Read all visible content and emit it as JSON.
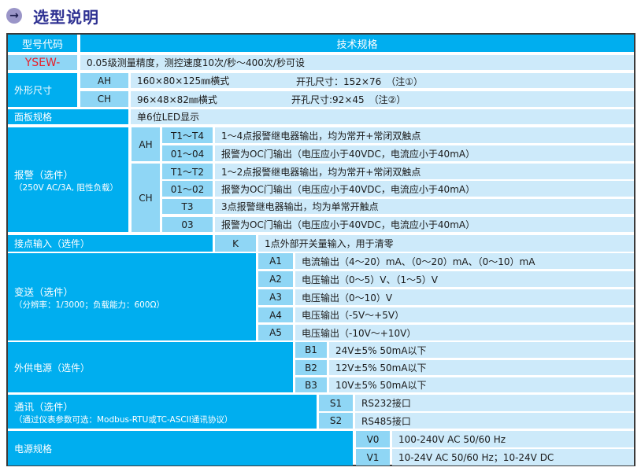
{
  "title": {
    "icon": "circle-arrow-right-icon",
    "text": "选型说明"
  },
  "colors": {
    "label_bg": "#00aeef",
    "code_bg": "#8fd6f5",
    "text_bg": "#cdeafa",
    "title": "#2e3192",
    "model": "#e8202a"
  },
  "header": {
    "code_col": "型号代码",
    "spec_col": "技术规格"
  },
  "model": {
    "code": "YSEW-",
    "desc": "0.05级测量精度，测控速度10次/秒～400次/秒可设"
  },
  "size": {
    "label": "外形尺寸",
    "rows": [
      {
        "code": "AH",
        "dim": "160×80×125㎜横式",
        "cut": "开孔尺寸：152×76　（注①）"
      },
      {
        "code": "CH",
        "dim": "96×48×82㎜横式",
        "cut": "开孔尺寸:92×45　（注②）"
      }
    ]
  },
  "panel": {
    "label": "面板规格",
    "desc": "单6位LED显示"
  },
  "alarm": {
    "label": "报警（选件）",
    "sub": "（250V AC/3A, 阻性负载）",
    "groups": [
      {
        "code": "AH",
        "rows": [
          {
            "code": "T1～T4",
            "desc": "1～4点报警继电器输出，均为常开+常闭双触点"
          },
          {
            "code": "01～04",
            "desc": "报警为OC门输出（电压应小于40VDC，电流应小于40mA）"
          }
        ]
      },
      {
        "code": "CH",
        "rows": [
          {
            "code": "T1～T2",
            "desc": "1～2点报警继电器输出，均为常开+常闭双触点"
          },
          {
            "code": "01～02",
            "desc": "报警为OC门输出（电压应小于40VDC，电流应小于40mA）"
          },
          {
            "code": "T3",
            "desc": "3点报警继电器输出，均为单常开触点"
          },
          {
            "code": "03",
            "desc": "报警为OC门输出（电压应小于40VDC，电流应小于40mA）"
          }
        ]
      }
    ]
  },
  "contact": {
    "label": "接点输入（选件）",
    "code": "K",
    "desc": "1点外部开关量输入，用于清零"
  },
  "transmit": {
    "label": "变送（选件）",
    "sub": "（分辨率：1/3000；负载能力：600Ω）",
    "rows": [
      {
        "code": "A1",
        "desc": "电流输出（4～20）mA、（0～20）mA、（0～10）mA"
      },
      {
        "code": "A2",
        "desc": "电压输出（0～5）V、（1～5）V"
      },
      {
        "code": "A3",
        "desc": "电压输出（0～10）V"
      },
      {
        "code": "A4",
        "desc": "电压输出（-5V～+5V）"
      },
      {
        "code": "A5",
        "desc": "电压输出（-10V～+10V）"
      }
    ]
  },
  "supply": {
    "label": "外供电源（选件）",
    "rows": [
      {
        "code": "B1",
        "desc": "24V±5% 50mA以下"
      },
      {
        "code": "B2",
        "desc": "12V±5% 50mA以下"
      },
      {
        "code": "B3",
        "desc": "10V±5% 50mA以下"
      }
    ]
  },
  "comm": {
    "label": "通讯（选件）",
    "sub": "（通过仪表参数可选：Modbus-RTU或TC-ASCII通讯协议）",
    "rows": [
      {
        "code": "S1",
        "desc": "RS232接口"
      },
      {
        "code": "S2",
        "desc": "RS485接口"
      }
    ]
  },
  "power": {
    "label": "电源规格",
    "rows": [
      {
        "code": "V0",
        "desc": "100-240V AC 50/60 Hz"
      },
      {
        "code": "V1",
        "desc": "10-24V AC 50/60 Hz；10-24V DC"
      }
    ]
  }
}
